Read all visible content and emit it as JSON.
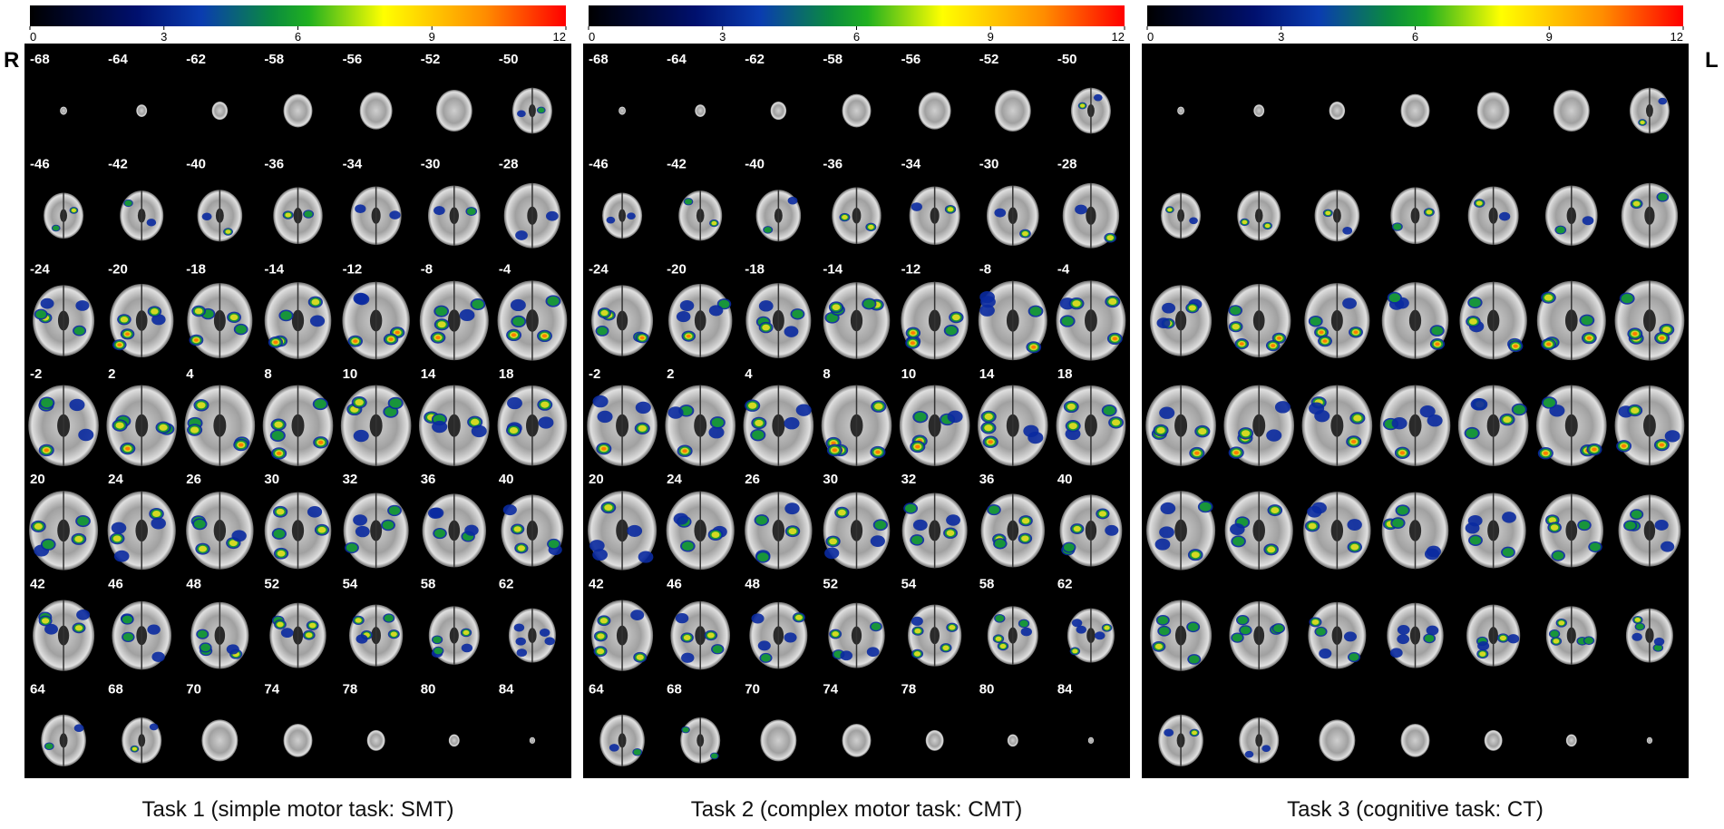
{
  "side_labels": {
    "right": "R",
    "left": "L"
  },
  "panels": [
    {
      "colorbar_ticks": [
        0,
        3,
        6,
        9,
        12
      ],
      "slice_labels": [
        "-68",
        "-64",
        "-62",
        "-58",
        "-56",
        "-52",
        "-50",
        "-46",
        "-42",
        "-40",
        "-36",
        "-34",
        "-30",
        "-28",
        "-24",
        "-20",
        "-18",
        "-14",
        "-12",
        "-8",
        "-4",
        "-2",
        "2",
        "4",
        "8",
        "10",
        "14",
        "18",
        "20",
        "24",
        "26",
        "30",
        "32",
        "36",
        "40",
        "42",
        "46",
        "48",
        "52",
        "54",
        "58",
        "62",
        "64",
        "68",
        "70",
        "74",
        "78",
        "80",
        "84"
      ],
      "caption": "Task 1 (simple motor task: SMT)"
    },
    {
      "colorbar_ticks": [
        0,
        3,
        6,
        9,
        12
      ],
      "slice_labels": [
        "-68",
        "-64",
        "-62",
        "-58",
        "-56",
        "-52",
        "-50",
        "-46",
        "-42",
        "-40",
        "-36",
        "-34",
        "-30",
        "-28",
        "-24",
        "-20",
        "-18",
        "-14",
        "-12",
        "-8",
        "-4",
        "-2",
        "2",
        "4",
        "8",
        "10",
        "14",
        "18",
        "20",
        "24",
        "26",
        "30",
        "32",
        "36",
        "40",
        "42",
        "46",
        "48",
        "52",
        "54",
        "58",
        "62",
        "64",
        "68",
        "70",
        "74",
        "78",
        "80",
        "84"
      ],
      "caption": "Task 2 (complex motor task: CMT)"
    },
    {
      "colorbar_ticks": [
        0,
        3,
        6,
        9,
        12
      ],
      "caption": "Task 3 (cognitive task: CT)"
    }
  ]
}
